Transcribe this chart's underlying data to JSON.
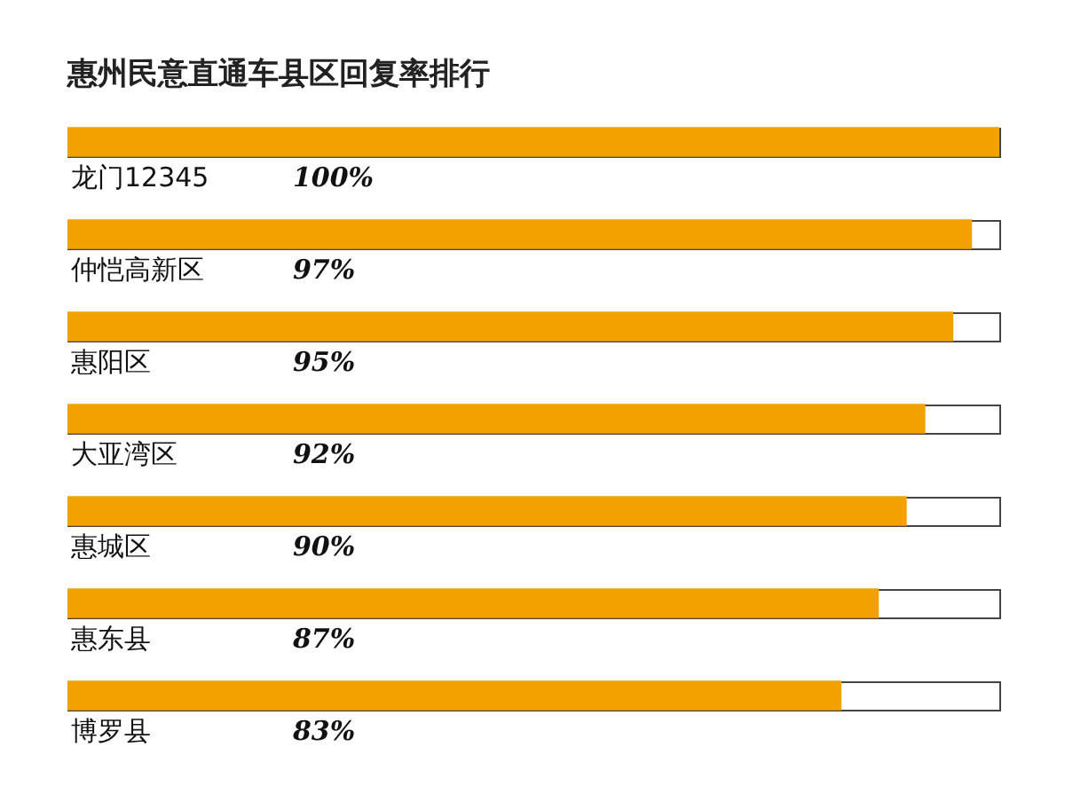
{
  "chart_data": {
    "type": "bar",
    "orientation": "horizontal",
    "title": "惠州民意直通车县区回复率排行",
    "categories": [
      "龙门12345",
      "仲恺高新区",
      "惠阳区",
      "大亚湾区",
      "惠城区",
      "惠东县",
      "博罗县"
    ],
    "values": [
      100,
      97,
      95,
      92,
      90,
      87,
      83
    ],
    "value_labels": [
      "100%",
      "97%",
      "95%",
      "92%",
      "90%",
      "87%",
      "83%"
    ],
    "color": "#f2a100",
    "xlim": [
      0,
      100
    ],
    "tick_labels": false,
    "legend": false
  }
}
